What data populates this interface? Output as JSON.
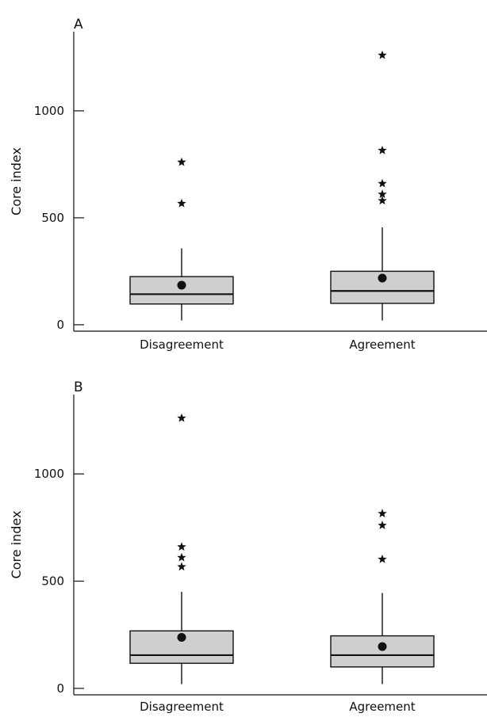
{
  "chart_data": [
    {
      "type": "box",
      "panel_label": "A",
      "ylabel": "Core index",
      "ylim": [
        -30,
        1370
      ],
      "yticks": [
        0,
        500,
        1000
      ],
      "categories": [
        "Disagreement",
        "Agreement"
      ],
      "boxes": [
        {
          "category": "Disagreement",
          "whisker_low": 20,
          "q1": 97,
          "median": 143,
          "q3": 225,
          "whisker_high": 357,
          "mean": 185,
          "outliers": [
            567,
            760
          ]
        },
        {
          "category": "Agreement",
          "whisker_low": 20,
          "q1": 100,
          "median": 158,
          "q3": 250,
          "whisker_high": 455,
          "mean": 218,
          "outliers": [
            580,
            610,
            660,
            815,
            1260
          ]
        }
      ]
    },
    {
      "type": "box",
      "panel_label": "B",
      "ylabel": "Core index",
      "ylim": [
        -30,
        1370
      ],
      "yticks": [
        0,
        500,
        1000
      ],
      "categories": [
        "Disagreement",
        "Agreement"
      ],
      "boxes": [
        {
          "category": "Disagreement",
          "whisker_low": 20,
          "q1": 117,
          "median": 155,
          "q3": 268,
          "whisker_high": 450,
          "mean": 238,
          "outliers": [
            567,
            610,
            660,
            1260
          ]
        },
        {
          "category": "Agreement",
          "whisker_low": 20,
          "q1": 100,
          "median": 155,
          "q3": 245,
          "whisker_high": 445,
          "mean": 195,
          "outliers": [
            602,
            760,
            815
          ]
        }
      ]
    }
  ]
}
